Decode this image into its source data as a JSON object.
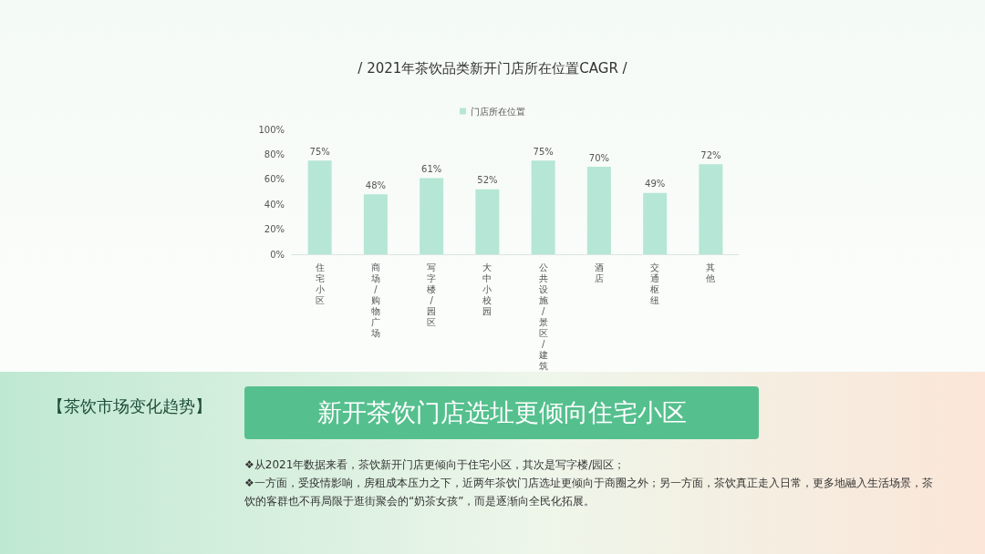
{
  "chart_data": {
    "type": "bar",
    "title": "/ 2021年茶饮品类新开门店所在位置CAGR /",
    "categories": [
      "住宅小区",
      "商场/购物广场",
      "写字楼/园区",
      "大中小校园",
      "公共设施/景区/建筑",
      "酒店",
      "交通枢纽",
      "其他"
    ],
    "series": [
      {
        "name": "门店所在位置",
        "color": "#b5e6d6",
        "values": [
          75,
          48,
          61,
          52,
          75,
          70,
          49,
          72
        ],
        "value_labels": [
          "75%",
          "48%",
          "61%",
          "52%",
          "75%",
          "70%",
          "49%",
          "72%"
        ]
      }
    ],
    "ylim": [
      0,
      100
    ],
    "yticks": [
      {
        "value": 0,
        "label": "0%"
      },
      {
        "value": 20,
        "label": "20%"
      },
      {
        "value": 40,
        "label": "40%"
      },
      {
        "value": 60,
        "label": "60%"
      },
      {
        "value": 80,
        "label": "80%"
      },
      {
        "value": 100,
        "label": "100%"
      }
    ],
    "grid": false,
    "legend": "top",
    "annotations": [
      "【茶饮市场变化趋势】",
      "新开茶饮门店选址更倾向住宅小区",
      "❖从2021年数据来看，茶饮新开门店更倾向于住宅小区，其次是写字楼/园区；",
      "❖一方面，受疫情影响，房租成本压力之下，近两年茶饮门店选址更倾向于商圈之外；另一方面，茶饮真正走入日常，更多地融入生活场景，茶饮的客群也不再局限于逛街聚会的“奶茶女孩”，而是逐渐向全民化拓展。"
    ]
  }
}
